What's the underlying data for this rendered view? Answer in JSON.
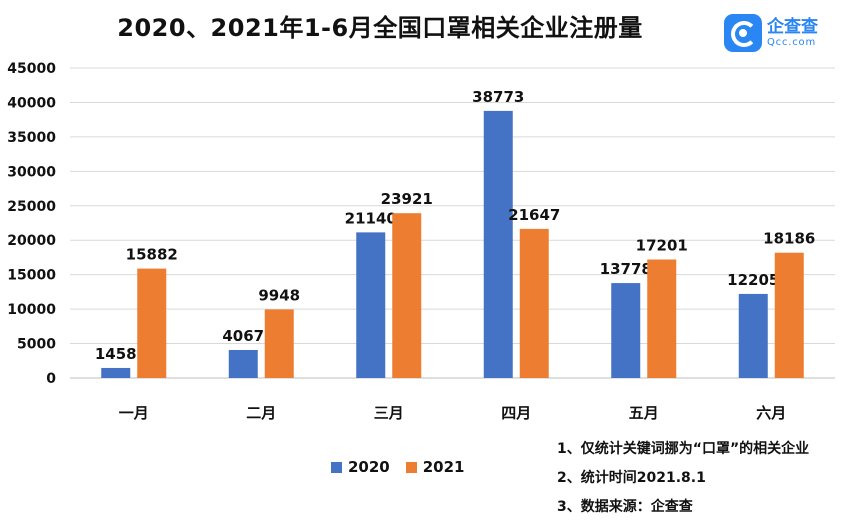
{
  "title": "2020、2021年1-6月全国口罩相关企业注册量",
  "logo": {
    "name": "企查查",
    "domain": "Qcc.com",
    "icon": "qcc-logo-icon",
    "color": "#2a86f3"
  },
  "chart_data": {
    "type": "bar",
    "title": "2020、2021年1-6月全国口罩相关企业注册量",
    "xlabel": "",
    "ylabel": "",
    "categories": [
      "一月",
      "二月",
      "三月",
      "四月",
      "五月",
      "六月"
    ],
    "series": [
      {
        "name": "2020",
        "color": "#4472c4",
        "values": [
          1458,
          4067,
          21140,
          38773,
          13778,
          12205
        ]
      },
      {
        "name": "2021",
        "color": "#ed7d31",
        "values": [
          15882,
          9948,
          23921,
          21647,
          17201,
          18186
        ]
      }
    ],
    "ylim": [
      0,
      45000
    ],
    "yticks": [
      0,
      5000,
      10000,
      15000,
      20000,
      25000,
      30000,
      35000,
      40000,
      45000
    ],
    "grid": true,
    "legend_position": "bottom-center",
    "data_labels": true
  },
  "notes": [
    "1、仅统计关键词挪为“口罩”的相关企业",
    "2、统计时间2021.8.1",
    "3、数据来源：企查查"
  ]
}
